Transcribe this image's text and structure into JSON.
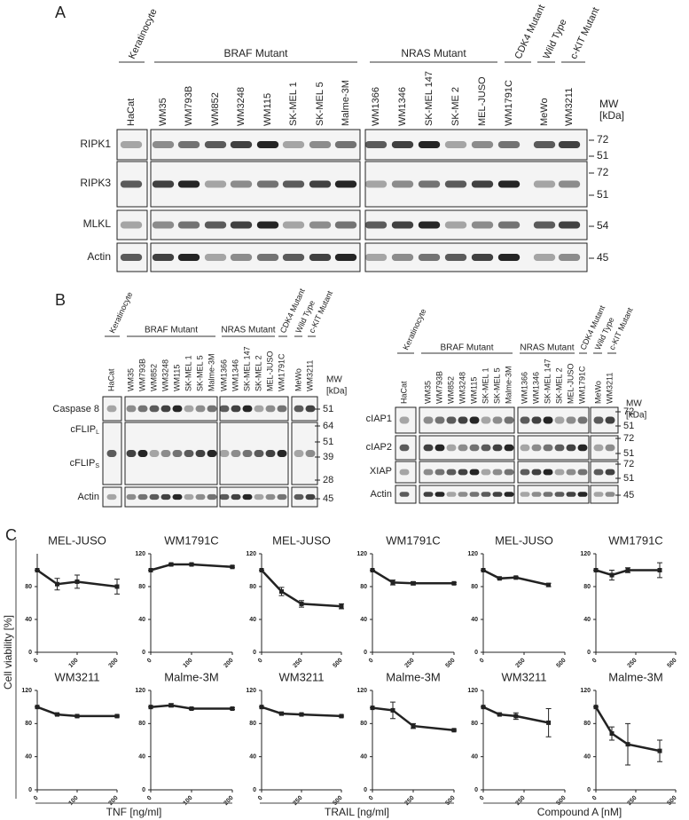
{
  "panel_a": {
    "label": "A",
    "groups": [
      "Keratinocyte",
      "BRAF Mutant",
      "NRAS Mutant",
      "CDK4 Mutant",
      "Wild Type",
      "c-KIT Mutant"
    ],
    "lanes": [
      "HaCat",
      "WM35",
      "WM793B",
      "WM852",
      "WM3248",
      "WM115",
      "SK-MEL 1",
      "SK-MEL 5",
      "Malme-3M",
      "WM1366",
      "WM1346",
      "SK-MEL 147",
      "SK-ME  2",
      "MEL-JUSO",
      "WM1791C",
      "MeWo",
      "WM3211"
    ],
    "mw_header": [
      "MW",
      "[kDa]"
    ],
    "rows": [
      {
        "labels": [
          {
            "text": "RIPK1"
          }
        ],
        "mw": [
          72,
          51
        ]
      },
      {
        "labels": [
          {
            "text": "RIPK3"
          }
        ],
        "mw": [
          72,
          51
        ]
      },
      {
        "labels": [
          {
            "text": "MLKL"
          }
        ],
        "mw": [
          54
        ]
      },
      {
        "labels": [
          {
            "text": "Actin"
          }
        ],
        "mw": [
          45
        ]
      }
    ]
  },
  "panel_b": {
    "label": "B",
    "left": {
      "groups": [
        "Keratinocyte",
        "BRAF Mutant",
        "NRAS Mutant",
        "CDK4 Mutant",
        "Wild Type",
        "c-KIT Mutant"
      ],
      "lanes": [
        "HaCat",
        "WM35",
        "WM793B",
        "WM852",
        "WM3248",
        "WM115",
        "SK-MEL 1",
        "SK-MEL 5",
        "Malme-3M",
        "WM1366",
        "WM1346",
        "SK-MEL 147",
        "SK-MEL 2",
        "MEL-JUSO",
        "WM1791C",
        "MeWo",
        "WM3211"
      ],
      "mw_header": [
        "MW",
        "[kDa]"
      ],
      "rows": [
        {
          "labels": [
            {
              "text": "Caspase 8"
            }
          ],
          "mw": [
            51
          ]
        },
        {
          "labels": [
            {
              "text": "cFLIP",
              "sub": "L"
            },
            {
              "text": "cFLIP",
              "sub": "S"
            }
          ],
          "mw": [
            64,
            51,
            39,
            28
          ]
        },
        {
          "labels": [
            {
              "text": "Actin"
            }
          ],
          "mw": [
            45
          ]
        }
      ]
    },
    "right": {
      "groups": [
        "Keratinocyte",
        "BRAF Mutant",
        "NRAS Mutant",
        "CDK4 Mutant",
        "Wild Type",
        "c-KIT Mutant"
      ],
      "lanes": [
        "HaCat",
        "WM35",
        "WM793B",
        "WM852",
        "WM3248",
        "WM115",
        "SK-MEL 1",
        "SK-MEL 5",
        "Malme-3M",
        "WM1366",
        "WM1346",
        "SK-MEL 147",
        "SK-MEL 2",
        "MEL-JUSO",
        "WM1791C",
        "MeWo",
        "WM3211"
      ],
      "mw_header": [
        "MW",
        "[kDa]"
      ],
      "rows": [
        {
          "labels": [
            {
              "text": "cIAP1"
            }
          ],
          "mw": [
            72,
            51
          ]
        },
        {
          "labels": [
            {
              "text": "cIAP2"
            }
          ],
          "mw": [
            72,
            51
          ]
        },
        {
          "labels": [
            {
              "text": "XIAP"
            }
          ],
          "mw": [
            72,
            51
          ]
        },
        {
          "labels": [
            {
              "text": "Actin"
            }
          ],
          "mw": [
            45
          ]
        }
      ]
    }
  },
  "panel_c": {
    "label": "C",
    "y_label": "Cell viability [%]",
    "x_labels": [
      "TNF [ng/ml]",
      "TRAIL [ng/ml]",
      "Compound A [nM]"
    ]
  },
  "chart_data": [
    {
      "type": "line",
      "title": "MEL-JUSO",
      "x": [
        0,
        50,
        100,
        200
      ],
      "values": [
        100,
        83,
        86,
        80
      ],
      "errors": [
        0,
        7,
        8,
        9
      ],
      "xlim": [
        0,
        200
      ],
      "xticks": [
        0,
        100,
        200
      ],
      "ylim": [
        0,
        120
      ],
      "yticks": [
        0,
        40,
        80
      ],
      "color": "#222222"
    },
    {
      "type": "line",
      "title": "WM1791C",
      "x": [
        0,
        50,
        100,
        200
      ],
      "values": [
        100,
        107,
        107,
        104
      ],
      "errors": [
        0,
        1,
        1,
        1
      ],
      "xlim": [
        0,
        200
      ],
      "xticks": [
        0,
        100,
        200
      ],
      "ylim": [
        0,
        120
      ],
      "yticks": [
        0,
        40,
        80,
        120
      ],
      "color": "#222222"
    },
    {
      "type": "line",
      "title": "MEL-JUSO",
      "x": [
        0,
        125,
        250,
        500
      ],
      "values": [
        100,
        74,
        59,
        56
      ],
      "errors": [
        0,
        5,
        4,
        3
      ],
      "xlim": [
        0,
        500
      ],
      "xticks": [
        0,
        250,
        500
      ],
      "ylim": [
        0,
        120
      ],
      "yticks": [
        0,
        40,
        80,
        120
      ],
      "color": "#222222"
    },
    {
      "type": "line",
      "title": "WM1791C",
      "x": [
        0,
        125,
        250,
        500
      ],
      "values": [
        100,
        85,
        84,
        84
      ],
      "errors": [
        0,
        3,
        2,
        1
      ],
      "xlim": [
        0,
        500
      ],
      "xticks": [
        0,
        250,
        500
      ],
      "ylim": [
        0,
        120
      ],
      "yticks": [
        0,
        40,
        80,
        120
      ],
      "color": "#222222"
    },
    {
      "type": "line",
      "title": "MEL-JUSO",
      "x": [
        0,
        100,
        200,
        400
      ],
      "values": [
        100,
        90,
        91,
        82
      ],
      "errors": [
        0,
        1,
        1,
        2
      ],
      "xlim": [
        0,
        500
      ],
      "xticks": [
        0,
        250,
        500
      ],
      "ylim": [
        0,
        120
      ],
      "yticks": [
        0,
        40,
        80,
        120
      ],
      "color": "#222222"
    },
    {
      "type": "line",
      "title": "WM1791C",
      "x": [
        0,
        100,
        200,
        400
      ],
      "values": [
        100,
        94,
        100,
        100
      ],
      "errors": [
        0,
        6,
        3,
        9
      ],
      "xlim": [
        0,
        500
      ],
      "xticks": [
        0,
        250,
        500
      ],
      "ylim": [
        0,
        120
      ],
      "yticks": [
        0,
        40,
        80,
        120
      ],
      "color": "#222222"
    },
    {
      "type": "line",
      "title": "WM3211",
      "x": [
        0,
        50,
        100,
        200
      ],
      "values": [
        100,
        91,
        89,
        89
      ],
      "errors": [
        0,
        1,
        1,
        1
      ],
      "xlim": [
        0,
        200
      ],
      "xticks": [
        0,
        100,
        200
      ],
      "ylim": [
        0,
        120
      ],
      "yticks": [
        0,
        40,
        80,
        120
      ],
      "color": "#222222"
    },
    {
      "type": "line",
      "title": "Malme-3M",
      "x": [
        0,
        50,
        100,
        200
      ],
      "values": [
        100,
        102,
        98,
        98
      ],
      "errors": [
        0,
        2,
        1,
        1
      ],
      "xlim": [
        0,
        200
      ],
      "xticks": [
        0,
        100,
        200
      ],
      "ylim": [
        0,
        120
      ],
      "yticks": [
        0,
        40,
        80,
        120
      ],
      "color": "#222222"
    },
    {
      "type": "line",
      "title": "WM3211",
      "x": [
        0,
        125,
        250,
        500
      ],
      "values": [
        100,
        92,
        91,
        89
      ],
      "errors": [
        0,
        1,
        1,
        1
      ],
      "xlim": [
        0,
        500
      ],
      "xticks": [
        0,
        250,
        500
      ],
      "ylim": [
        0,
        120
      ],
      "yticks": [
        0,
        40,
        80,
        120
      ],
      "color": "#222222"
    },
    {
      "type": "line",
      "title": "Malme-3M",
      "x": [
        0,
        125,
        250,
        500
      ],
      "values": [
        99,
        96,
        77,
        72
      ],
      "errors": [
        0,
        10,
        3,
        1
      ],
      "xlim": [
        0,
        500
      ],
      "xticks": [
        0,
        250,
        500
      ],
      "ylim": [
        0,
        120
      ],
      "yticks": [
        0,
        40,
        80,
        120
      ],
      "color": "#222222"
    },
    {
      "type": "line",
      "title": "WM3211",
      "x": [
        0,
        100,
        200,
        400
      ],
      "values": [
        100,
        91,
        89,
        81
      ],
      "errors": [
        0,
        1,
        4,
        17
      ],
      "xlim": [
        0,
        500
      ],
      "xticks": [
        0,
        250,
        500
      ],
      "ylim": [
        0,
        120
      ],
      "yticks": [
        0,
        40,
        80,
        120
      ],
      "color": "#222222"
    },
    {
      "type": "line",
      "title": "Malme-3M",
      "x": [
        0,
        100,
        200,
        400
      ],
      "values": [
        100,
        68,
        55,
        47
      ],
      "errors": [
        0,
        8,
        25,
        13
      ],
      "xlim": [
        0,
        500
      ],
      "xticks": [
        0,
        250,
        500
      ],
      "ylim": [
        0,
        120
      ],
      "yticks": [
        0,
        40,
        80,
        120
      ],
      "color": "#222222"
    }
  ]
}
